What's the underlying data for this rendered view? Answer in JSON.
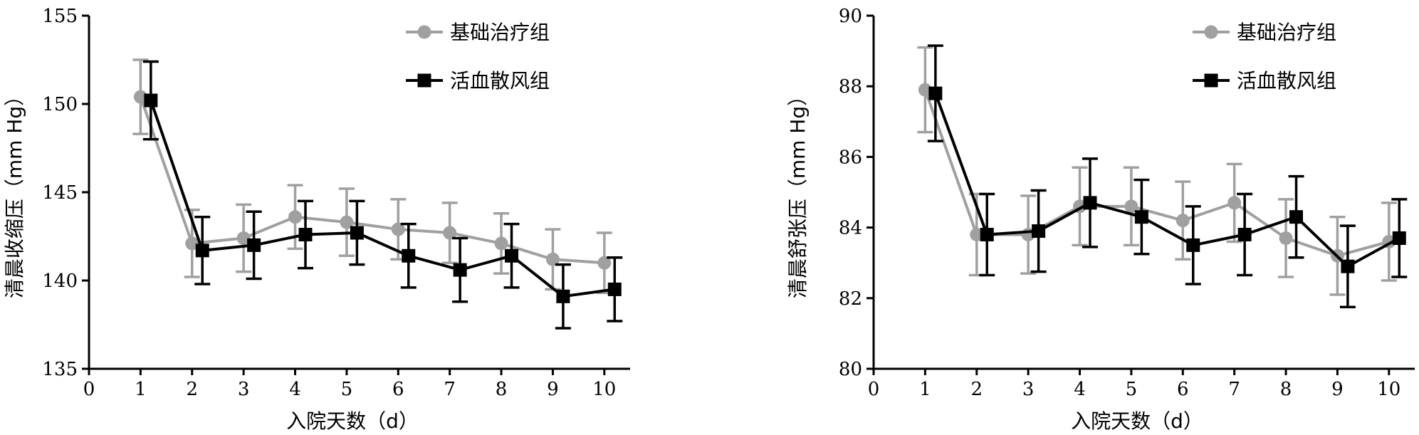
{
  "chart_data": [
    {
      "type": "line",
      "id": "left",
      "xlabel": "入院天数（d）",
      "ylabel": "清晨收缩压（mm Hg）",
      "xlim": [
        0,
        10.5
      ],
      "ylim": [
        135,
        155
      ],
      "xticks": [
        0,
        1,
        2,
        3,
        4,
        5,
        6,
        7,
        8,
        9,
        10
      ],
      "yticks": [
        135,
        140,
        145,
        150,
        155
      ],
      "grid": false,
      "legend": "top-right",
      "x": [
        1,
        2,
        3,
        4,
        5,
        6,
        7,
        8,
        9,
        10
      ],
      "series": [
        {
          "name": "基础治疗组",
          "color": "#a0a0a0",
          "marker": "circle",
          "offset": 0,
          "values": [
            150.4,
            142.1,
            142.4,
            143.6,
            143.3,
            142.9,
            142.7,
            142.1,
            141.2,
            141.0
          ],
          "errors": [
            2.1,
            1.9,
            1.9,
            1.8,
            1.9,
            1.7,
            1.7,
            1.7,
            1.7,
            1.7
          ]
        },
        {
          "name": "活血散风组",
          "color": "#000000",
          "marker": "square",
          "offset": 0.2,
          "values": [
            150.2,
            141.7,
            142.0,
            142.6,
            142.7,
            141.4,
            140.6,
            141.4,
            139.1,
            139.5
          ],
          "errors": [
            2.2,
            1.9,
            1.9,
            1.9,
            1.8,
            1.8,
            1.8,
            1.8,
            1.8,
            1.8
          ]
        }
      ]
    },
    {
      "type": "line",
      "id": "right",
      "xlabel": "入院天数（d）",
      "ylabel": "清晨舒张压（mm Hg）",
      "xlim": [
        0,
        10.5
      ],
      "ylim": [
        80,
        90
      ],
      "xticks": [
        0,
        1,
        2,
        3,
        4,
        5,
        6,
        7,
        8,
        9,
        10
      ],
      "yticks": [
        80,
        82,
        84,
        86,
        88,
        90
      ],
      "grid": false,
      "legend": "top-right",
      "x": [
        1,
        2,
        3,
        4,
        5,
        6,
        7,
        8,
        9,
        10
      ],
      "series": [
        {
          "name": "基础治疗组",
          "color": "#a0a0a0",
          "marker": "circle",
          "offset": 0,
          "values": [
            87.9,
            83.8,
            83.8,
            84.6,
            84.6,
            84.2,
            84.7,
            83.7,
            83.2,
            83.6
          ],
          "errors": [
            1.2,
            1.15,
            1.1,
            1.1,
            1.1,
            1.1,
            1.1,
            1.1,
            1.1,
            1.1
          ]
        },
        {
          "name": "活血散风组",
          "color": "#000000",
          "marker": "square",
          "offset": 0.2,
          "values": [
            87.8,
            83.8,
            83.9,
            84.7,
            84.3,
            83.5,
            83.8,
            84.3,
            82.9,
            83.7
          ],
          "errors": [
            1.35,
            1.15,
            1.15,
            1.25,
            1.05,
            1.1,
            1.15,
            1.15,
            1.15,
            1.1
          ]
        }
      ]
    }
  ]
}
